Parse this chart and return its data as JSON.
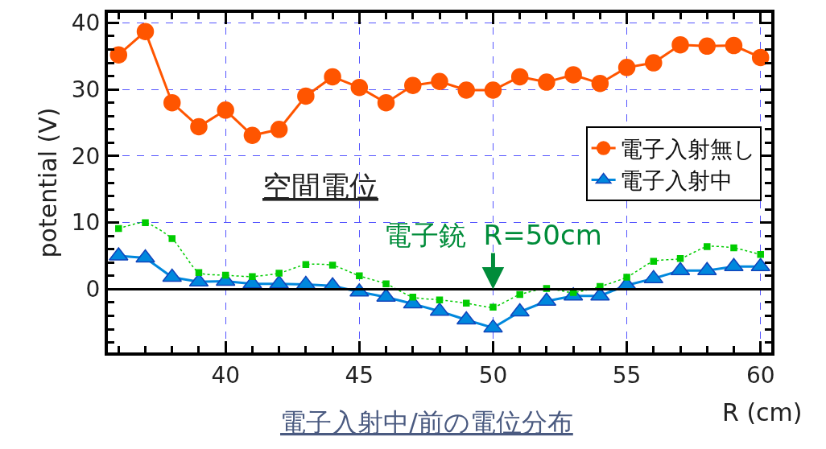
{
  "chart_data": {
    "type": "line",
    "xlabel": "R (cm)",
    "ylabel": "potential (V)",
    "x": [
      36,
      37,
      38,
      39,
      40,
      41,
      42,
      43,
      44,
      45,
      46,
      47,
      48,
      49,
      50,
      51,
      52,
      53,
      54,
      55,
      56,
      57,
      58,
      59,
      60
    ],
    "series": [
      {
        "name": "電子入射無し",
        "color": "#ff5500",
        "marker": "circle",
        "line_style": "solid",
        "values": [
          35.2,
          38.7,
          28.0,
          24.4,
          26.9,
          23.1,
          24.0,
          29.0,
          31.9,
          30.3,
          28.0,
          30.6,
          31.2,
          29.9,
          29.9,
          31.9,
          31.1,
          32.2,
          30.9,
          33.3,
          34.0,
          36.7,
          36.5,
          36.6,
          34.8
        ]
      },
      {
        "name": "電子入射中",
        "color": "#0088dd",
        "marker": "triangle",
        "line_style": "solid",
        "values": [
          5.0,
          4.7,
          1.8,
          1.1,
          1.2,
          0.8,
          0.8,
          0.7,
          0.5,
          -0.4,
          -1.2,
          -2.2,
          -3.3,
          -4.6,
          -5.8,
          -3.4,
          -1.8,
          -1.0,
          -1.0,
          0.6,
          1.6,
          2.8,
          2.8,
          3.4,
          3.4
        ]
      },
      {
        "color": "#00cc00",
        "marker": "square",
        "line_style": "dotted",
        "values": [
          9.1,
          10.0,
          7.6,
          2.5,
          2.1,
          1.9,
          2.4,
          3.7,
          3.6,
          2.0,
          0.8,
          -1.2,
          -1.6,
          -2.1,
          -2.7,
          -0.8,
          0.1,
          -0.5,
          0.4,
          1.8,
          4.2,
          4.6,
          6.4,
          6.2,
          5.2
        ]
      }
    ],
    "xlim": [
      35.6,
      60.4
    ],
    "ylim": [
      -9.5,
      41.5
    ],
    "xticks": [
      40,
      45,
      50,
      55,
      60
    ],
    "yticks": [
      0,
      10,
      20,
      30,
      40
    ],
    "grid": true,
    "legend": "right",
    "ref_lines": [
      {
        "axis": "y",
        "value": 0,
        "color": "#000000",
        "line_style": "solid"
      }
    ],
    "annotations": [
      "空間電位",
      {
        "text": "電子銃  R=50cm",
        "x": 50,
        "y": 0
      },
      "電子入射中/前の電位分布"
    ]
  }
}
